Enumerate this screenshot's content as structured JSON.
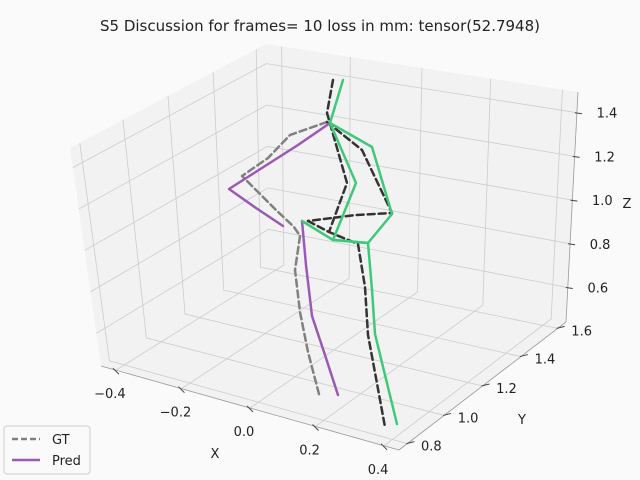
{
  "chart_data": {
    "type": "line",
    "projection": "3d",
    "title": "S5 Discussion for frames= 10 loss in mm: tensor(52.7948)",
    "xlabel": "X",
    "ylabel": "Y",
    "zlabel": "Z",
    "x_ticks": [
      "−0.4",
      "−0.2",
      "0.0",
      "0.2",
      "0.4"
    ],
    "y_ticks": [
      "0.8",
      "1.0",
      "1.2",
      "1.4",
      "1.6"
    ],
    "z_ticks": [
      "0.6",
      "0.8",
      "1.0",
      "1.2",
      "1.4"
    ],
    "grid": true,
    "legend_position": "lower-left",
    "series": [
      {
        "name": "GT",
        "style": "dashed",
        "limbs": [
          "gray",
          "dark"
        ]
      },
      {
        "name": "Pred",
        "style": "solid",
        "limbs": [
          "purple",
          "green"
        ]
      }
    ],
    "colors": {
      "gt_left": "#808080",
      "gt_right": "#333333",
      "pred_left": "#9b59b6",
      "pred_right": "#3ec97a",
      "grid": "#cccccc",
      "pane": "#f2f2f2"
    }
  }
}
